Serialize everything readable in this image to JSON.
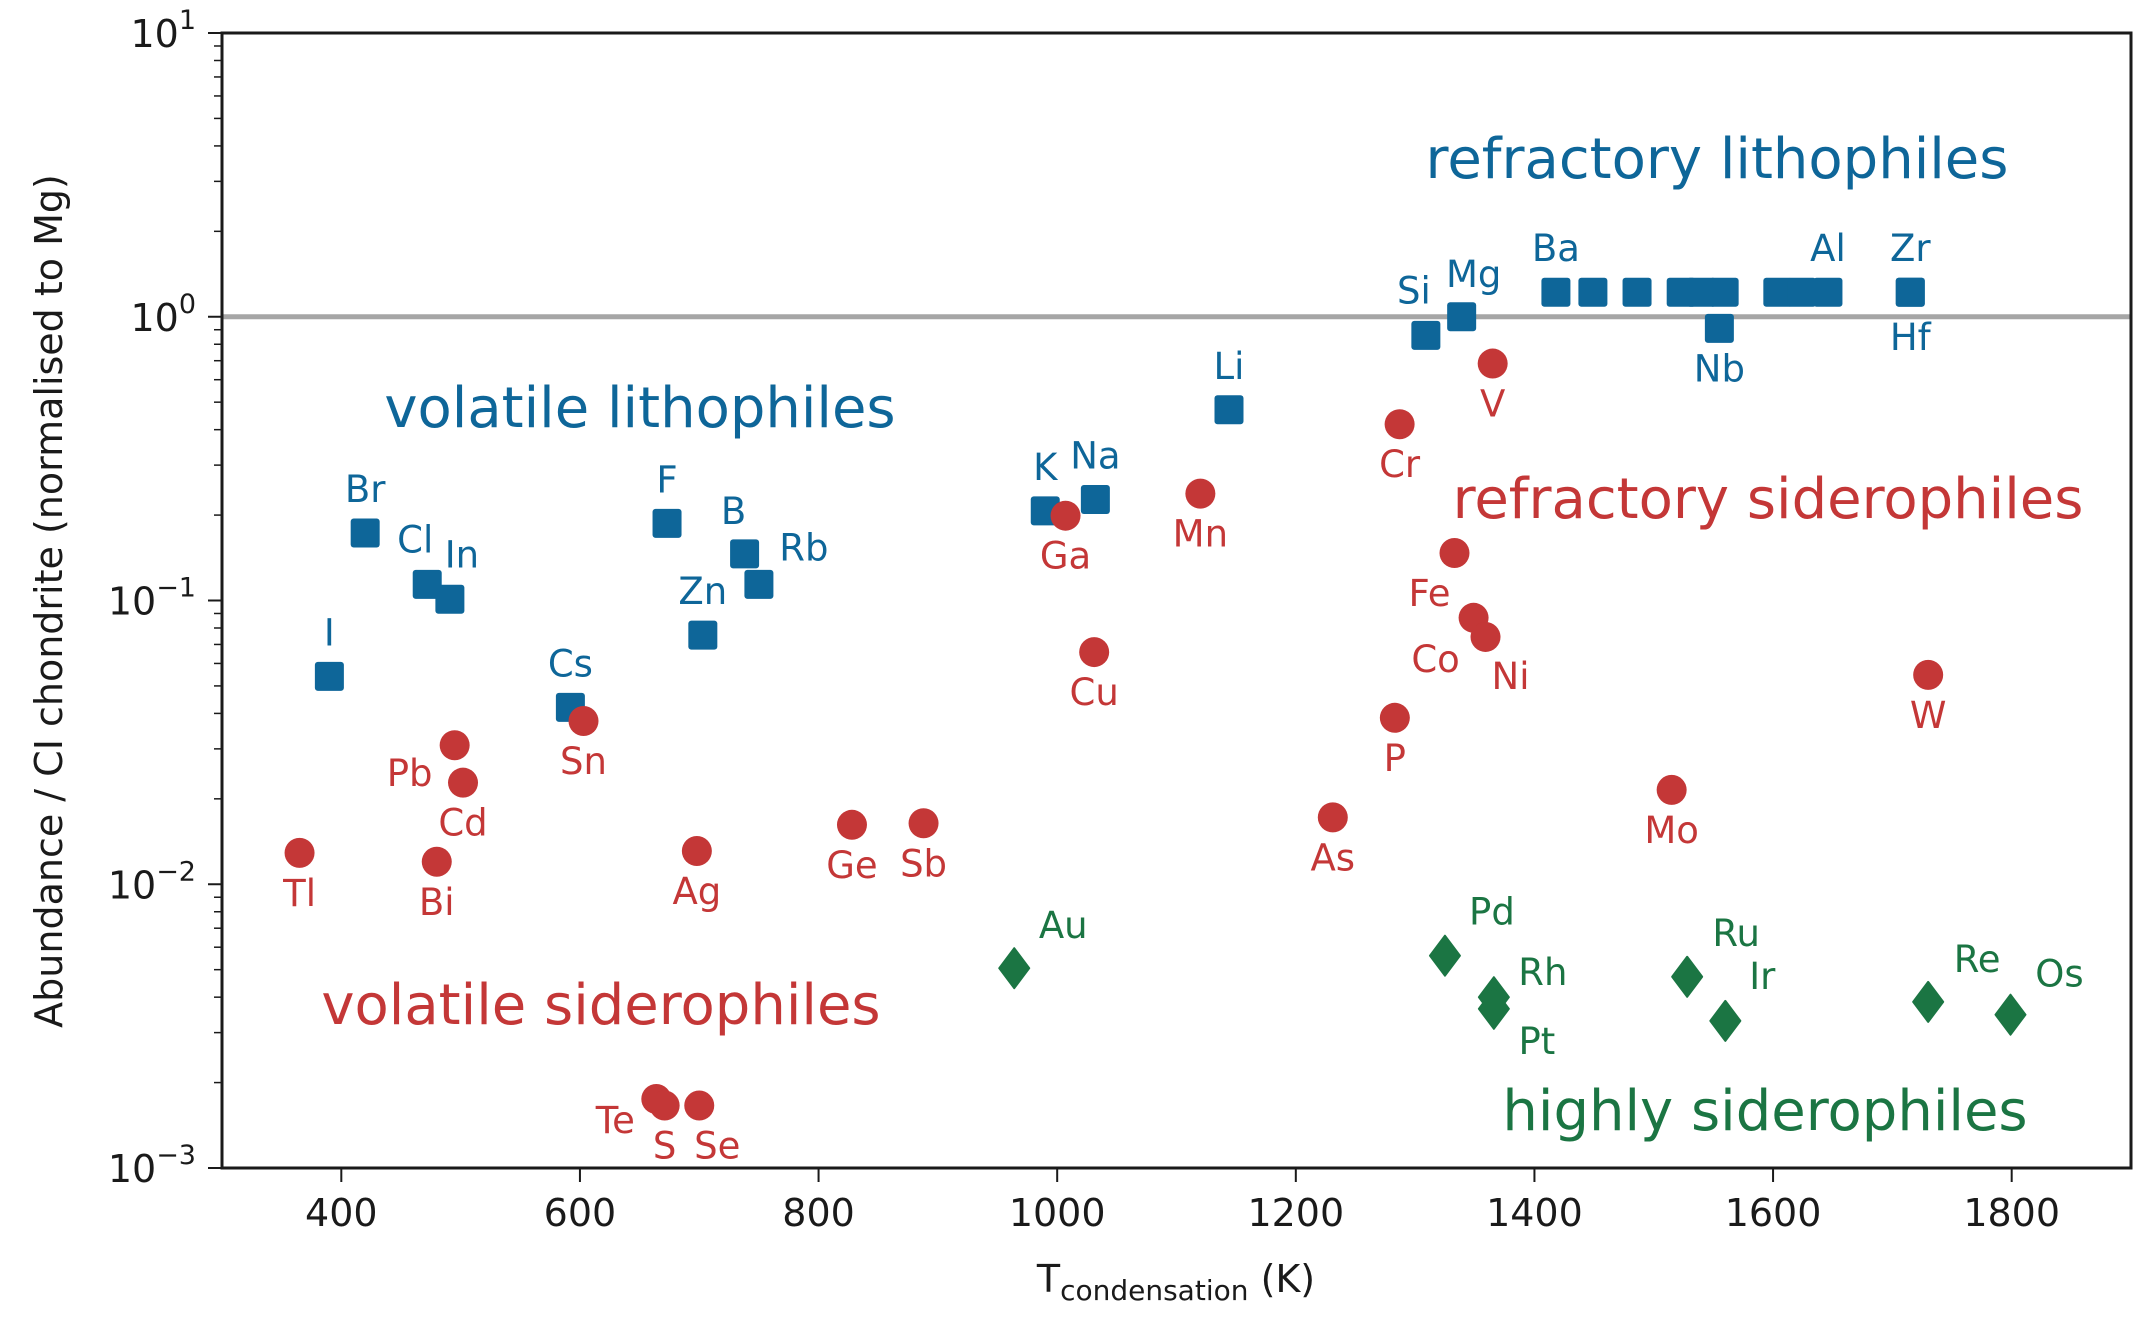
{
  "chart_data": {
    "type": "scatter",
    "title": "",
    "xlabel": {
      "main": "T",
      "subscript": "condensation",
      "unit": " (K)"
    },
    "ylabel": "Abundance / CI chondrite (normalised to Mg)",
    "xlim": [
      300,
      1900
    ],
    "ylim": [
      0.001,
      10
    ],
    "yscale": "log",
    "x_ticks": [
      "400",
      "600",
      "800",
      "1000",
      "1200",
      "1400",
      "1600",
      "1800"
    ],
    "x_tick_values": [
      400,
      600,
      800,
      1000,
      1200,
      1400,
      1600,
      1800
    ],
    "y_ticks": [
      {
        "base": "10",
        "exp": "1",
        "value": 10
      },
      {
        "base": "10",
        "exp": "0",
        "value": 1
      },
      {
        "base": "10",
        "exp": "−1",
        "value": 0.1
      },
      {
        "base": "10",
        "exp": "−2",
        "value": 0.01
      },
      {
        "base": "10",
        "exp": "−3",
        "value": 0.001
      }
    ],
    "reference_line": {
      "y": 1.0,
      "color": "#a6a6a6"
    },
    "grid": false,
    "colors": {
      "lithophile": "#0e6699",
      "siderophile": "#c43737",
      "highly_siderophile": "#1b7543"
    },
    "series": [
      {
        "name": "lithophiles",
        "marker": "square",
        "color_key": "lithophile",
        "points": [
          {
            "label": "I",
            "x": 390,
            "y": 0.054
          },
          {
            "label": "Br",
            "x": 420,
            "y": 0.173
          },
          {
            "label": "Cl",
            "x": 472,
            "y": 0.114
          },
          {
            "label": "In",
            "x": 491,
            "y": 0.101
          },
          {
            "label": "Cs",
            "x": 592,
            "y": 0.042
          },
          {
            "label": "F",
            "x": 673,
            "y": 0.187
          },
          {
            "label": "B",
            "x": 738,
            "y": 0.146
          },
          {
            "label": "Zn",
            "x": 703,
            "y": 0.0755
          },
          {
            "label": "Rb",
            "x": 750,
            "y": 0.114
          },
          {
            "label": "K",
            "x": 990,
            "y": 0.207
          },
          {
            "label": "Na",
            "x": 1032,
            "y": 0.227
          },
          {
            "label": "Li",
            "x": 1144,
            "y": 0.47
          },
          {
            "label": "Si",
            "x": 1309,
            "y": 0.86
          },
          {
            "label": "Mg",
            "x": 1339,
            "y": 1.0
          },
          {
            "label": "Ba",
            "x": 1418,
            "y": 1.22
          },
          {
            "x": 1449,
            "y": 1.22
          },
          {
            "x": 1486,
            "y": 1.22
          },
          {
            "x": 1523,
            "y": 1.22
          },
          {
            "x": 1540,
            "y": 1.22
          },
          {
            "x": 1559,
            "y": 1.22
          },
          {
            "label": "Nb",
            "x": 1555,
            "y": 0.91
          },
          {
            "x": 1604,
            "y": 1.22
          },
          {
            "x": 1624,
            "y": 1.22
          },
          {
            "label": "Al",
            "x": 1646,
            "y": 1.22
          },
          {
            "label": "Zr",
            "x": 1715,
            "y": 1.22
          },
          {
            "label": "Hf",
            "x": 1715,
            "y": 1.22
          }
        ]
      },
      {
        "name": "siderophiles",
        "marker": "circle",
        "color_key": "siderophile",
        "points": [
          {
            "label": "Tl",
            "x": 365,
            "y": 0.0129
          },
          {
            "label": "Bi",
            "x": 480,
            "y": 0.012
          },
          {
            "label": "Pb",
            "x": 495,
            "y": 0.0309
          },
          {
            "label": "Cd",
            "x": 502,
            "y": 0.0228
          },
          {
            "label": "Sn",
            "x": 603,
            "y": 0.0376
          },
          {
            "label": "Ag",
            "x": 698,
            "y": 0.0131
          },
          {
            "label": "Ge",
            "x": 828,
            "y": 0.0162
          },
          {
            "label": "Sb",
            "x": 888,
            "y": 0.0164
          },
          {
            "label": "Te",
            "x": 664,
            "y": 0.00175
          },
          {
            "label": "S",
            "x": 671,
            "y": 0.00166
          },
          {
            "label": "Se",
            "x": 700,
            "y": 0.00166
          },
          {
            "label": "Ga",
            "x": 1007,
            "y": 0.199
          },
          {
            "label": "Cu",
            "x": 1031,
            "y": 0.0658
          },
          {
            "label": "Mn",
            "x": 1120,
            "y": 0.238
          },
          {
            "label": "Cr",
            "x": 1287,
            "y": 0.418
          },
          {
            "label": "V",
            "x": 1365,
            "y": 0.684
          },
          {
            "label": "Fe",
            "x": 1333,
            "y": 0.147
          },
          {
            "label": "Co",
            "x": 1349,
            "y": 0.0869
          },
          {
            "label": "Ni",
            "x": 1359,
            "y": 0.0744
          },
          {
            "label": "P",
            "x": 1283,
            "y": 0.0386
          },
          {
            "label": "As",
            "x": 1231,
            "y": 0.0172
          },
          {
            "label": "Mo",
            "x": 1515,
            "y": 0.0215
          },
          {
            "label": "W",
            "x": 1730,
            "y": 0.0547
          }
        ]
      },
      {
        "name": "highly siderophiles",
        "marker": "diamond",
        "color_key": "highly_siderophile",
        "points": [
          {
            "label": "Au",
            "x": 964,
            "y": 0.00506
          },
          {
            "label": "Pd",
            "x": 1325,
            "y": 0.0056
          },
          {
            "label": "Rh",
            "x": 1366,
            "y": 0.004
          },
          {
            "label": "Pt",
            "x": 1366,
            "y": 0.00364
          },
          {
            "label": "Ru",
            "x": 1528,
            "y": 0.00472
          },
          {
            "label": "Ir",
            "x": 1560,
            "y": 0.0033
          },
          {
            "label": "Re",
            "x": 1730,
            "y": 0.00385
          },
          {
            "label": "Os",
            "x": 1799,
            "y": 0.00347
          }
        ]
      }
    ],
    "annotations": [
      {
        "id": "refractory-lithophiles",
        "text": "refractory lithophiles",
        "color_key": "lithophile"
      },
      {
        "id": "volatile-lithophiles",
        "text": "volatile lithophiles",
        "color_key": "lithophile"
      },
      {
        "id": "refractory-siderophiles",
        "text": "refractory siderophiles",
        "color_key": "siderophile"
      },
      {
        "id": "volatile-siderophiles",
        "text": "volatile siderophiles",
        "color_key": "siderophile"
      },
      {
        "id": "highly-siderophiles",
        "text": "highly siderophiles",
        "color_key": "highly_siderophile"
      }
    ]
  }
}
